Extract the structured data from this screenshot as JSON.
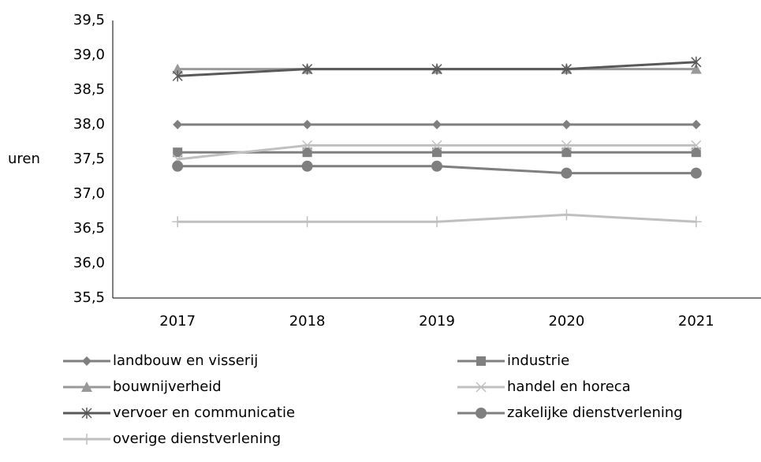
{
  "chart_data": {
    "type": "line",
    "ylabel": "uren",
    "categories": [
      "2017",
      "2018",
      "2019",
      "2020",
      "2021"
    ],
    "series": [
      {
        "name": "landbouw en visserij",
        "color": "#7f7f7f",
        "marker": "diamond",
        "values": [
          38.0,
          38.0,
          38.0,
          38.0,
          38.0
        ]
      },
      {
        "name": "industrie",
        "color": "#808080",
        "marker": "square",
        "values": [
          37.6,
          37.6,
          37.6,
          37.6,
          37.6
        ]
      },
      {
        "name": "bouwnijverheid",
        "color": "#999999",
        "marker": "triangle",
        "values": [
          38.8,
          38.8,
          38.8,
          38.8,
          38.8
        ]
      },
      {
        "name": "handel en horeca",
        "color": "#c0c0c0",
        "marker": "x",
        "values": [
          37.5,
          37.7,
          37.7,
          37.7,
          37.7
        ]
      },
      {
        "name": "vervoer en communicatie",
        "color": "#595959",
        "marker": "star",
        "values": [
          38.7,
          38.8,
          38.8,
          38.8,
          38.9
        ]
      },
      {
        "name": "zakelijke dienstverlening",
        "color": "#7f7f7f",
        "marker": "circle",
        "values": [
          37.4,
          37.4,
          37.4,
          37.3,
          37.3
        ]
      },
      {
        "name": "overige dienstverlening",
        "color": "#bfbfbf",
        "marker": "plus",
        "values": [
          36.6,
          36.6,
          36.6,
          36.7,
          36.6
        ]
      }
    ],
    "ylim": [
      35.5,
      39.5
    ],
    "yticks": [
      {
        "value": 35.5,
        "label": "35,5"
      },
      {
        "value": 36.0,
        "label": "36,0"
      },
      {
        "value": 36.5,
        "label": "36,5"
      },
      {
        "value": 37.0,
        "label": "37,0"
      },
      {
        "value": 37.5,
        "label": "37,5"
      },
      {
        "value": 38.0,
        "label": "38,0"
      },
      {
        "value": 38.5,
        "label": "38,5"
      },
      {
        "value": 39.0,
        "label": "39,0"
      },
      {
        "value": 39.5,
        "label": "39,5"
      }
    ],
    "grid": false,
    "legend": "bottom"
  }
}
